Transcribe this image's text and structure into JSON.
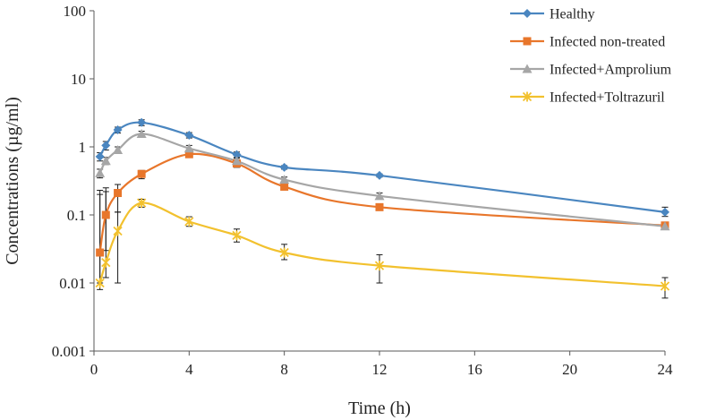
{
  "chart_data": {
    "type": "line",
    "title": "",
    "xlabel": "Time (h)",
    "ylabel": "Concentrations (µg/ml)",
    "xlim": [
      0,
      24
    ],
    "ylim": [
      0.001,
      100
    ],
    "yscale": "log",
    "x_ticks": [
      0,
      4,
      8,
      12,
      16,
      20,
      24
    ],
    "y_ticks": [
      0.001,
      0.01,
      0.1,
      1,
      10,
      100
    ],
    "x_tick_labels": [
      "0",
      "4",
      "8",
      "12",
      "16",
      "20",
      "24"
    ],
    "y_tick_labels": [
      "0.001",
      "0.01",
      "0.1",
      "1",
      "10",
      "100"
    ],
    "legend_position": "top-right",
    "series": [
      {
        "name": "Healthy",
        "color": "#4a86c0",
        "marker": "diamond",
        "x": [
          0.25,
          0.5,
          1,
          2,
          4,
          6,
          8,
          12,
          24
        ],
        "values": [
          0.72,
          1.05,
          1.78,
          2.28,
          1.48,
          0.77,
          0.5,
          0.38,
          0.11
        ],
        "err_low": [
          0.62,
          0.9,
          1.6,
          2.05,
          1.35,
          0.7,
          0.47,
          0.36,
          0.095
        ],
        "err_high": [
          0.82,
          1.2,
          1.95,
          2.5,
          1.62,
          0.84,
          0.53,
          0.4,
          0.13
        ]
      },
      {
        "name": "Infected non-treated",
        "color": "#e8762b",
        "marker": "square",
        "x": [
          0.25,
          0.5,
          1,
          2,
          4,
          6,
          8,
          12,
          24
        ],
        "values": [
          0.028,
          0.1,
          0.21,
          0.4,
          0.78,
          0.57,
          0.26,
          0.13,
          0.07
        ],
        "err_low": [
          0.01,
          0.03,
          0.11,
          0.34,
          0.72,
          0.5,
          0.24,
          0.12,
          0.065
        ],
        "err_high": [
          0.2,
          0.25,
          0.28,
          0.45,
          0.85,
          0.64,
          0.28,
          0.14,
          0.075
        ]
      },
      {
        "name": "Infected+Amprolium",
        "color": "#a6a6a6",
        "marker": "triangle",
        "x": [
          0.25,
          0.5,
          1,
          2,
          4,
          6,
          8,
          12,
          24
        ],
        "values": [
          0.41,
          0.62,
          0.9,
          1.55,
          0.95,
          0.62,
          0.33,
          0.19,
          0.068
        ],
        "err_low": [
          0.35,
          0.55,
          0.8,
          1.4,
          0.85,
          0.56,
          0.3,
          0.17,
          0.062
        ],
        "err_high": [
          0.47,
          0.7,
          1.0,
          1.7,
          1.05,
          0.68,
          0.36,
          0.21,
          0.075
        ]
      },
      {
        "name": "Infected+Toltrazuril",
        "color": "#f2c12e",
        "marker": "star",
        "x": [
          0.25,
          0.5,
          1,
          2,
          4,
          6,
          8,
          12,
          24
        ],
        "values": [
          0.01,
          0.02,
          0.058,
          0.15,
          0.08,
          0.05,
          0.028,
          0.018,
          0.009
        ],
        "err_low": [
          0.008,
          0.012,
          0.01,
          0.13,
          0.068,
          0.04,
          0.022,
          0.01,
          0.006
        ],
        "err_high": [
          0.23,
          0.22,
          0.11,
          0.17,
          0.094,
          0.062,
          0.037,
          0.026,
          0.012
        ]
      }
    ]
  }
}
